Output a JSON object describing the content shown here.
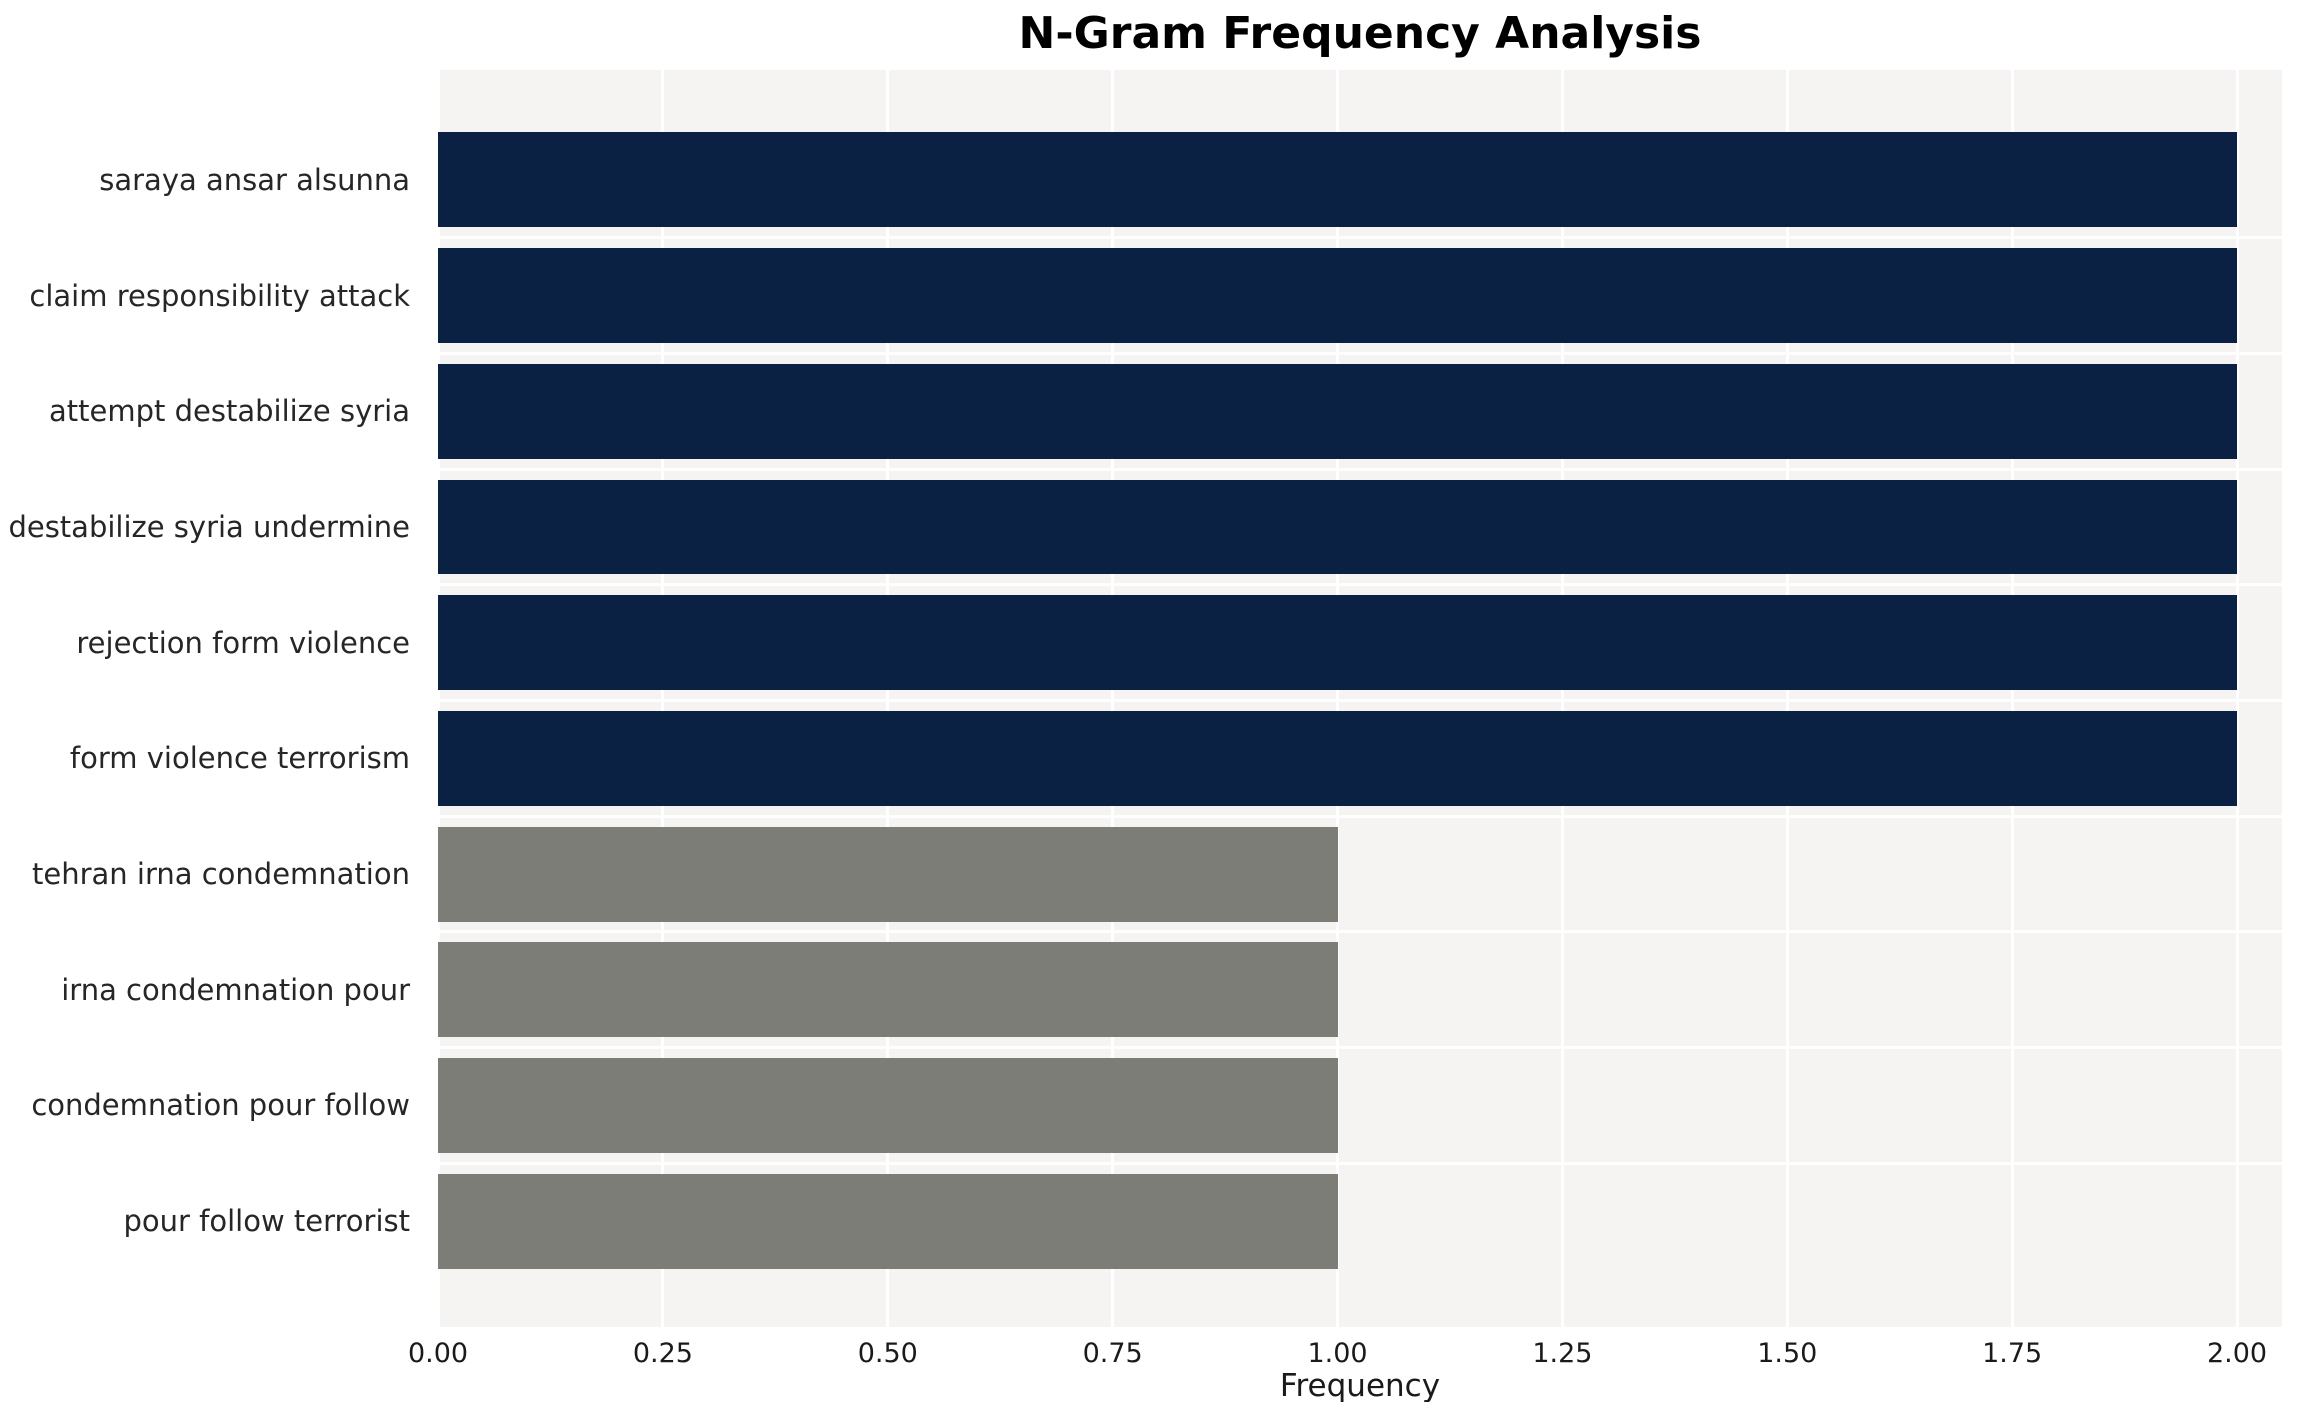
{
  "chart_data": {
    "type": "bar",
    "orientation": "horizontal",
    "title": "N-Gram Frequency Analysis",
    "xlabel": "Frequency",
    "ylabel": "",
    "categories": [
      "saraya ansar alsunna",
      "claim responsibility attack",
      "attempt destabilize syria",
      "destabilize syria undermine",
      "rejection form violence",
      "form violence terrorism",
      "tehran irna condemnation",
      "irna condemnation pour",
      "condemnation pour follow",
      "pour follow terrorist"
    ],
    "values": [
      2.0,
      2.0,
      2.0,
      2.0,
      2.0,
      2.0,
      1.0,
      1.0,
      1.0,
      1.0
    ],
    "bar_colors": [
      "#0b2143",
      "#0b2143",
      "#0b2143",
      "#0b2143",
      "#0b2143",
      "#0b2143",
      "#7d7d78",
      "#7d7d78",
      "#7d7d78",
      "#7d7d78"
    ],
    "xlim": [
      0,
      2.05
    ],
    "xticks": [
      0,
      0.25,
      0.5,
      0.75,
      1.0,
      1.25,
      1.5,
      1.75,
      2.0
    ],
    "xtick_labels": [
      "0.00",
      "0.25",
      "0.50",
      "0.75",
      "1.00",
      "1.25",
      "1.50",
      "1.75",
      "2.00"
    ],
    "grid": true,
    "legend": null,
    "plot_background": "#f5f4f2",
    "gridline_color": "#ffffff"
  }
}
